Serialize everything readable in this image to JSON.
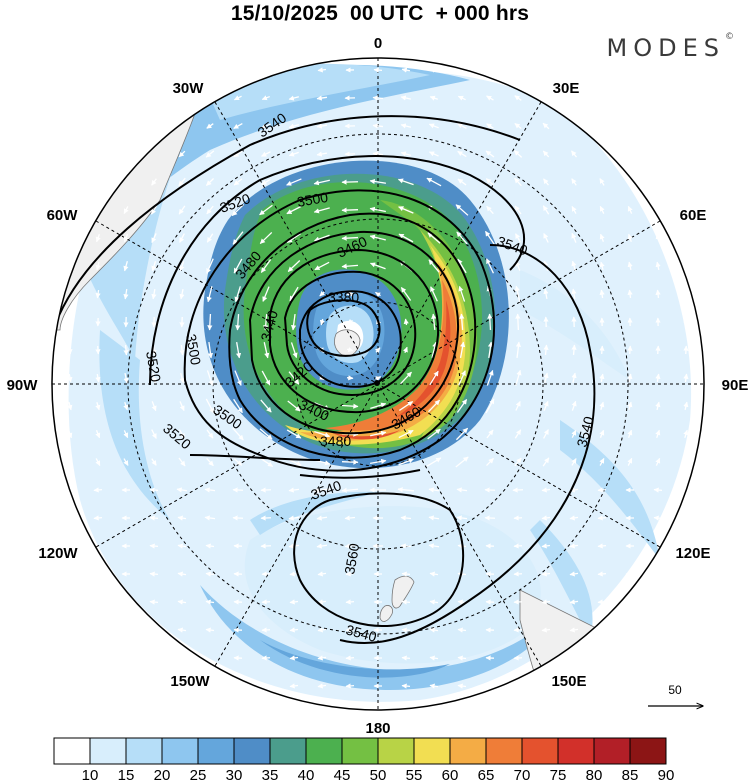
{
  "title": "15/10/2025  00 UTC  + 000 hrs",
  "brand": "MODES",
  "brand_mark": "©",
  "longitude_labels": [
    {
      "id": "lon-0",
      "text": "0"
    },
    {
      "id": "lon-30e",
      "text": "30E"
    },
    {
      "id": "lon-60e",
      "text": "60E"
    },
    {
      "id": "lon-90e",
      "text": "90E"
    },
    {
      "id": "lon-120e",
      "text": "120E"
    },
    {
      "id": "lon-150e",
      "text": "150E"
    },
    {
      "id": "lon-180",
      "text": "180"
    },
    {
      "id": "lon-150w",
      "text": "150W"
    },
    {
      "id": "lon-120w",
      "text": "120W"
    },
    {
      "id": "lon-90w",
      "text": "90W"
    },
    {
      "id": "lon-60w",
      "text": "60W"
    },
    {
      "id": "lon-30w",
      "text": "30W"
    }
  ],
  "contour_labels": [
    "3540",
    "3520",
    "3500",
    "3480",
    "3460",
    "3440",
    "3420",
    "3400",
    "3380",
    "3560"
  ],
  "wind_speed_colorbar": {
    "levels": [
      "10",
      "15",
      "20",
      "25",
      "30",
      "35",
      "40",
      "45",
      "50",
      "55",
      "60",
      "65",
      "70",
      "75",
      "80",
      "85",
      "90"
    ],
    "colors": [
      "#ffffff",
      "#d8eefc",
      "#b6def8",
      "#8ec6ef",
      "#64a6dc",
      "#4f8dc7",
      "#4b9d8c",
      "#4cb04f",
      "#74c043",
      "#b8d346",
      "#f2de52",
      "#f4ac45",
      "#ef7d38",
      "#e4522e",
      "#d2302a",
      "#b21f27",
      "#8c1515"
    ]
  },
  "vector_reference": {
    "value": "50"
  },
  "projection": "south polar stereographic"
}
